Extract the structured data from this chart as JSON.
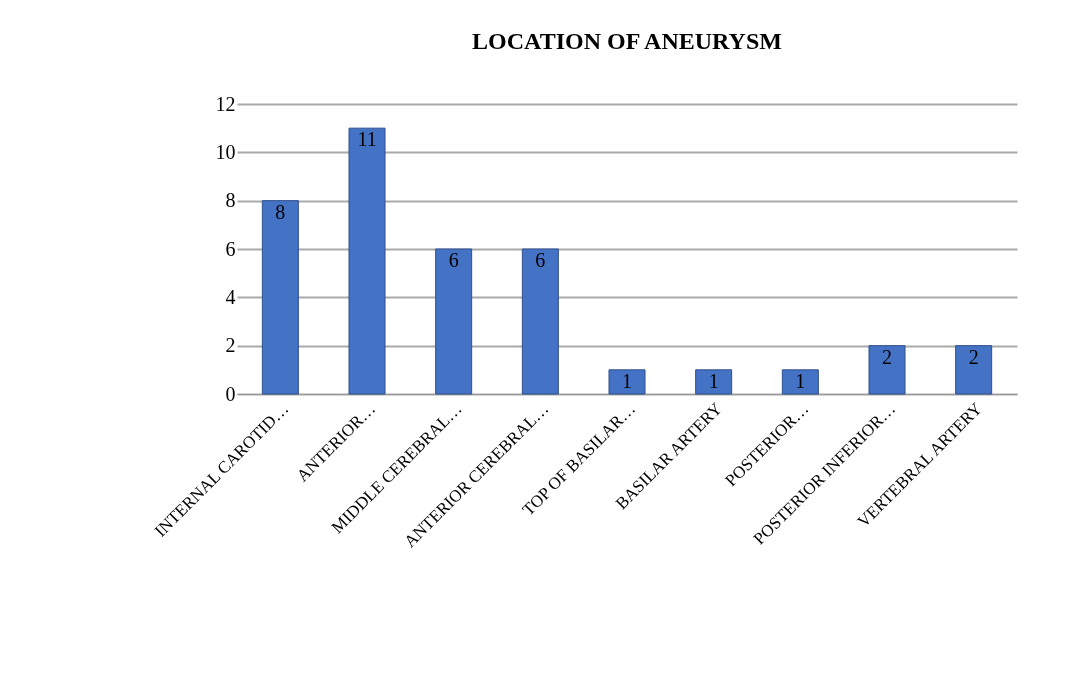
{
  "chart_data": {
    "type": "bar",
    "title": "LOCATION OF ANEURYSM",
    "categories": [
      "INTERNAL CAROTID…",
      "ANTERIOR…",
      "MIDDLE CEREBRAL…",
      "ANTERIOR CEREBRAL…",
      "TOP OF BASILAR…",
      "BASILAR ARTERY",
      "POSTERIOR…",
      "POSTERIOR INFERIOR…",
      "VERTEBRAL ARTERY"
    ],
    "values": [
      8,
      11,
      6,
      6,
      1,
      1,
      1,
      2,
      2
    ],
    "color": "#4472c4",
    "ylim": [
      0,
      12
    ],
    "yticks": [
      0,
      2,
      4,
      6,
      8,
      10,
      12
    ],
    "grid": "y",
    "data_labels": true
  }
}
